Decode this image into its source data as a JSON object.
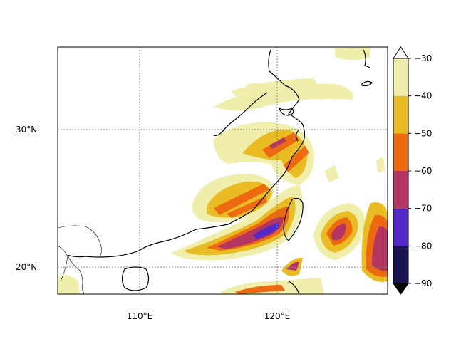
{
  "map": {
    "lat_labels": [
      {
        "value": 30,
        "text": "30°N"
      },
      {
        "value": 20,
        "text": "20°N"
      }
    ],
    "lon_labels": [
      {
        "value": 110,
        "text": "110°E"
      },
      {
        "value": 120,
        "text": "120°E"
      }
    ],
    "extent": {
      "lon_min": 104,
      "lon_max": 128,
      "lat_min": 18,
      "lat_max": 36
    }
  },
  "colorbar": {
    "ticks": [
      "−30",
      "−40",
      "−50",
      "−60",
      "−70",
      "−80",
      "−90"
    ],
    "levels": [
      -90,
      -80,
      -70,
      -60,
      -50,
      -40,
      -30
    ],
    "colors": [
      "#1a1550",
      "#5328c8",
      "#b43462",
      "#ee6a10",
      "#e8bc22",
      "#f0eeab"
    ],
    "extend": "both",
    "under_color": "#000000",
    "over_color": "#ffffff"
  }
}
